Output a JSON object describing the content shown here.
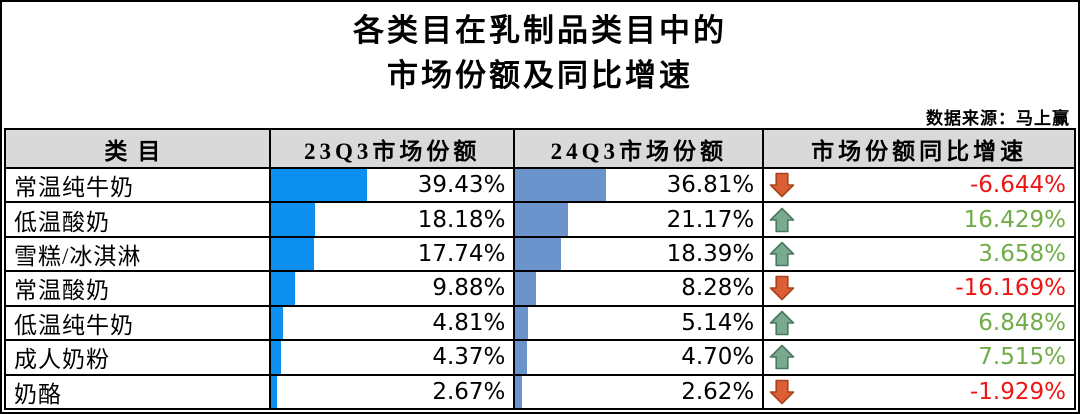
{
  "title": {
    "line1": "各类目在乳制品类目中的",
    "line2": "市场份额及同比增速"
  },
  "source": "数据来源：马上赢",
  "table": {
    "columns": {
      "category": "类目",
      "share_23q3": "23Q3市场份额",
      "share_24q3": "24Q3市场份额",
      "growth": "市场份额同比增速"
    },
    "rows": [
      {
        "category": "常温纯牛奶",
        "share_23q3": "39.43%",
        "share_23q3_pct": 39.43,
        "share_24q3": "36.81%",
        "share_24q3_pct": 36.81,
        "growth": "-6.644%",
        "direction": "down"
      },
      {
        "category": "低温酸奶",
        "share_23q3": "18.18%",
        "share_23q3_pct": 18.18,
        "share_24q3": "21.17%",
        "share_24q3_pct": 21.17,
        "growth": "16.429%",
        "direction": "up"
      },
      {
        "category": "雪糕/冰淇淋",
        "share_23q3": "17.74%",
        "share_23q3_pct": 17.74,
        "share_24q3": "18.39%",
        "share_24q3_pct": 18.39,
        "growth": "3.658%",
        "direction": "up"
      },
      {
        "category": "常温酸奶",
        "share_23q3": "9.88%",
        "share_23q3_pct": 9.88,
        "share_24q3": "8.28%",
        "share_24q3_pct": 8.28,
        "growth": "-16.169%",
        "direction": "down"
      },
      {
        "category": "低温纯牛奶",
        "share_23q3": "4.81%",
        "share_23q3_pct": 4.81,
        "share_24q3": "5.14%",
        "share_24q3_pct": 5.14,
        "growth": "6.848%",
        "direction": "up"
      },
      {
        "category": "成人奶粉",
        "share_23q3": "4.37%",
        "share_23q3_pct": 4.37,
        "share_24q3": "4.70%",
        "share_24q3_pct": 4.7,
        "growth": "7.515%",
        "direction": "up"
      },
      {
        "category": "奶酪",
        "share_23q3": "2.67%",
        "share_23q3_pct": 2.67,
        "share_24q3": "2.62%",
        "share_24q3_pct": 2.62,
        "growth": "-1.929%",
        "direction": "down"
      }
    ]
  },
  "colors": {
    "bar_23q3": "#0D8FEF",
    "bar_24q3": "#6B93CC",
    "positive_text": "#70AD47",
    "negative_text": "#EE1515",
    "arrow_up_fill": "#79A98F",
    "arrow_up_stroke": "#49795F",
    "arrow_down_fill": "#DC5E35",
    "arrow_down_stroke": "#A9441F",
    "header_bg": "#D9D9D9",
    "border": "#000000"
  },
  "chart_data": {
    "type": "table",
    "title": "各类目在乳制品类目中的市场份额及同比增速",
    "source": "数据来源：马上赢",
    "categories": [
      "常温纯牛奶",
      "低温酸奶",
      "雪糕/冰淇淋",
      "常温酸奶",
      "低温纯牛奶",
      "成人奶粉",
      "奶酪"
    ],
    "series": [
      {
        "name": "23Q3市场份额",
        "unit": "%",
        "values": [
          39.43,
          18.18,
          17.74,
          9.88,
          4.81,
          4.37,
          2.67
        ]
      },
      {
        "name": "24Q3市场份额",
        "unit": "%",
        "values": [
          36.81,
          21.17,
          18.39,
          8.28,
          5.14,
          4.7,
          2.62
        ]
      },
      {
        "name": "市场份额同比增速",
        "unit": "%",
        "values": [
          -6.644,
          16.429,
          3.658,
          -16.169,
          6.848,
          7.515,
          -1.929
        ]
      }
    ],
    "layout": {
      "bars_in_cells": true,
      "bar_scale": "percent_of_column_width",
      "grid": true
    }
  }
}
